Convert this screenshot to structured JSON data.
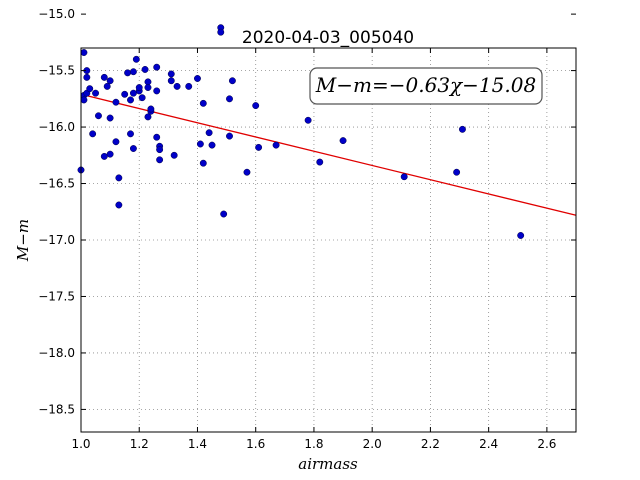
{
  "chart_data": {
    "type": "scatter",
    "title": "2020-04-03_005040",
    "xlabel": "airmass",
    "ylabel": "M−m",
    "xlim": [
      1.0,
      2.7
    ],
    "ylim": [
      -15.3,
      -18.7
    ],
    "y_inverted": true,
    "grid": true,
    "xticks": [
      1.0,
      1.2,
      1.4,
      1.6,
      1.8,
      2.0,
      2.2,
      2.4,
      2.6
    ],
    "xtick_labels": [
      "1.0",
      "1.2",
      "1.4",
      "1.6",
      "1.8",
      "2.0",
      "2.2",
      "2.4",
      "2.6"
    ],
    "yticks": [
      -15.0,
      -15.5,
      -16.0,
      -16.5,
      -17.0,
      -17.5,
      -18.0,
      -18.5
    ],
    "ytick_labels": [
      "−15.0",
      "−15.5",
      "−16.0",
      "−16.5",
      "−17.0",
      "−17.5",
      "−18.0",
      "−18.5"
    ],
    "annotation": "M−m=−0.63χ−15.08",
    "fit": {
      "slope": -0.63,
      "intercept": -15.08,
      "color": "#e00000"
    },
    "point_color": "#0000c8",
    "points": [
      [
        1.0,
        -16.38
      ],
      [
        1.01,
        -15.34
      ],
      [
        1.01,
        -15.72
      ],
      [
        1.01,
        -15.76
      ],
      [
        1.02,
        -15.5
      ],
      [
        1.02,
        -15.56
      ],
      [
        1.02,
        -15.7
      ],
      [
        1.03,
        -15.66
      ],
      [
        1.04,
        -16.06
      ],
      [
        1.05,
        -15.7
      ],
      [
        1.06,
        -15.9
      ],
      [
        1.08,
        -15.56
      ],
      [
        1.08,
        -16.26
      ],
      [
        1.09,
        -15.64
      ],
      [
        1.1,
        -15.92
      ],
      [
        1.1,
        -16.24
      ],
      [
        1.1,
        -15.59
      ],
      [
        1.12,
        -15.78
      ],
      [
        1.12,
        -16.13
      ],
      [
        1.13,
        -16.69
      ],
      [
        1.13,
        -16.45
      ],
      [
        1.15,
        -15.71
      ],
      [
        1.16,
        -15.52
      ],
      [
        1.17,
        -15.76
      ],
      [
        1.17,
        -16.06
      ],
      [
        1.18,
        -15.51
      ],
      [
        1.18,
        -15.7
      ],
      [
        1.18,
        -16.19
      ],
      [
        1.19,
        -15.4
      ],
      [
        1.2,
        -15.68
      ],
      [
        1.2,
        -15.65
      ],
      [
        1.21,
        -15.74
      ],
      [
        1.22,
        -15.49
      ],
      [
        1.23,
        -15.6
      ],
      [
        1.23,
        -15.65
      ],
      [
        1.23,
        -15.91
      ],
      [
        1.24,
        -15.86
      ],
      [
        1.24,
        -15.84
      ],
      [
        1.26,
        -15.47
      ],
      [
        1.26,
        -15.68
      ],
      [
        1.26,
        -16.09
      ],
      [
        1.27,
        -16.17
      ],
      [
        1.27,
        -16.2
      ],
      [
        1.27,
        -16.29
      ],
      [
        1.31,
        -15.53
      ],
      [
        1.31,
        -15.59
      ],
      [
        1.32,
        -16.25
      ],
      [
        1.33,
        -15.64
      ],
      [
        1.37,
        -15.64
      ],
      [
        1.4,
        -15.57
      ],
      [
        1.41,
        -16.15
      ],
      [
        1.42,
        -15.79
      ],
      [
        1.42,
        -16.32
      ],
      [
        1.44,
        -16.05
      ],
      [
        1.45,
        -16.16
      ],
      [
        1.48,
        -15.12
      ],
      [
        1.48,
        -15.16
      ],
      [
        1.49,
        -16.77
      ],
      [
        1.51,
        -15.75
      ],
      [
        1.51,
        -16.08
      ],
      [
        1.52,
        -15.59
      ],
      [
        1.57,
        -16.4
      ],
      [
        1.6,
        -15.81
      ],
      [
        1.61,
        -16.18
      ],
      [
        1.67,
        -16.16
      ],
      [
        1.78,
        -15.94
      ],
      [
        1.82,
        -16.31
      ],
      [
        1.9,
        -16.12
      ],
      [
        2.11,
        -16.44
      ],
      [
        2.29,
        -16.4
      ],
      [
        2.31,
        -16.02
      ],
      [
        2.51,
        -16.96
      ]
    ]
  }
}
